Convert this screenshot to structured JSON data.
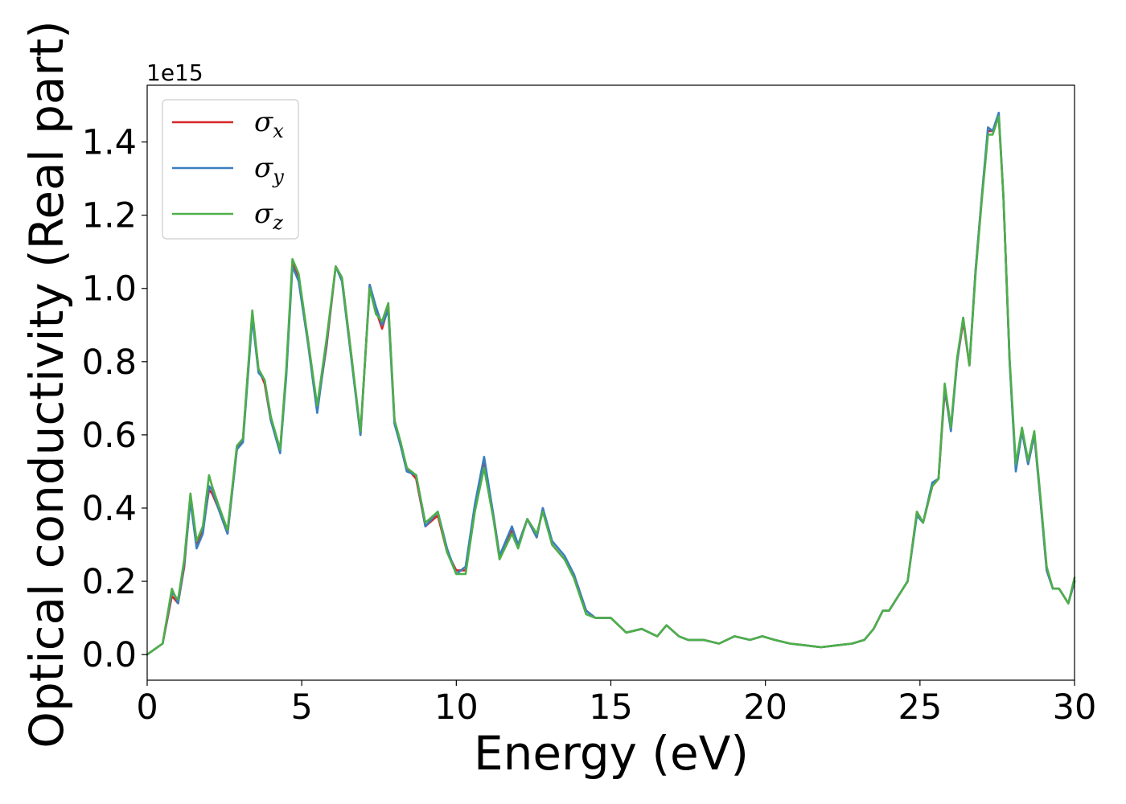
{
  "chart_data": {
    "type": "line",
    "title": "",
    "xlabel": "Energy (eV)",
    "ylabel": "Optical conductivity (Real part)",
    "y_offset_label": "1e15",
    "xlim": [
      0,
      30
    ],
    "ylim": [
      -0.07,
      1.555
    ],
    "x_ticks": [
      0,
      5,
      10,
      15,
      20,
      25,
      30
    ],
    "x_tick_labels": [
      "0",
      "5",
      "10",
      "15",
      "20",
      "25",
      "30"
    ],
    "y_ticks": [
      0.0,
      0.2,
      0.4,
      0.6,
      0.8,
      1.0,
      1.2,
      1.4
    ],
    "y_tick_labels": [
      "0.0",
      "0.2",
      "0.4",
      "0.6",
      "0.8",
      "1.0",
      "1.2",
      "1.4"
    ],
    "grid": false,
    "legend_position": "top-left",
    "legend": [
      {
        "symbol": "σ",
        "sub": "x",
        "color": "#d62728"
      },
      {
        "symbol": "σ",
        "sub": "y",
        "color": "#3a7fbf"
      },
      {
        "symbol": "σ",
        "sub": "z",
        "color": "#4daf4a"
      }
    ],
    "x": [
      0.0,
      0.5,
      0.8,
      0.9,
      1.0,
      1.2,
      1.4,
      1.6,
      1.8,
      2.0,
      2.1,
      2.3,
      2.6,
      2.9,
      3.1,
      3.4,
      3.6,
      3.8,
      4.0,
      4.3,
      4.5,
      4.7,
      4.9,
      5.2,
      5.5,
      5.8,
      6.1,
      6.3,
      6.6,
      6.9,
      7.2,
      7.4,
      7.6,
      7.8,
      8.0,
      8.2,
      8.4,
      8.7,
      9.0,
      9.4,
      9.7,
      10.0,
      10.3,
      10.6,
      10.9,
      11.2,
      11.4,
      11.8,
      12.0,
      12.3,
      12.6,
      12.8,
      13.1,
      13.5,
      13.8,
      14.2,
      14.5,
      15.0,
      15.5,
      16.0,
      16.5,
      16.8,
      17.2,
      17.5,
      18.0,
      18.5,
      19.0,
      19.5,
      19.9,
      20.3,
      20.8,
      21.3,
      21.8,
      22.3,
      22.8,
      23.2,
      23.5,
      23.8,
      24.0,
      24.3,
      24.6,
      24.9,
      25.1,
      25.4,
      25.6,
      25.8,
      26.0,
      26.2,
      26.4,
      26.6,
      26.8,
      27.0,
      27.2,
      27.35,
      27.55,
      27.7,
      27.9,
      28.1,
      28.3,
      28.5,
      28.7,
      28.9,
      29.1,
      29.3,
      29.5,
      29.8,
      30.0
    ],
    "series": [
      {
        "name": "σx",
        "values": [
          0.0,
          0.03,
          0.16,
          0.15,
          0.14,
          0.24,
          0.43,
          0.3,
          0.34,
          0.45,
          0.44,
          0.4,
          0.33,
          0.56,
          0.59,
          0.93,
          0.78,
          0.74,
          0.64,
          0.56,
          0.77,
          1.07,
          1.03,
          0.86,
          0.67,
          0.84,
          1.06,
          1.03,
          0.82,
          0.6,
          1.01,
          0.94,
          0.89,
          0.95,
          0.64,
          0.57,
          0.51,
          0.48,
          0.35,
          0.38,
          0.28,
          0.23,
          0.23,
          0.4,
          0.53,
          0.38,
          0.27,
          0.34,
          0.3,
          0.37,
          0.32,
          0.4,
          0.3,
          0.26,
          0.22,
          0.12,
          0.1,
          0.1,
          0.06,
          0.07,
          0.05,
          0.08,
          0.05,
          0.04,
          0.04,
          0.03,
          0.05,
          0.04,
          0.05,
          0.04,
          0.03,
          0.025,
          0.02,
          0.025,
          0.03,
          0.04,
          0.07,
          0.12,
          0.12,
          0.16,
          0.2,
          0.39,
          0.36,
          0.46,
          0.48,
          0.72,
          0.62,
          0.8,
          0.91,
          0.79,
          1.05,
          1.25,
          1.43,
          1.43,
          1.47,
          1.25,
          0.8,
          0.51,
          0.61,
          0.52,
          0.6,
          0.42,
          0.23,
          0.18,
          0.18,
          0.14,
          0.2
        ]
      },
      {
        "name": "σy",
        "values": [
          0.0,
          0.03,
          0.17,
          0.16,
          0.14,
          0.25,
          0.42,
          0.29,
          0.33,
          0.46,
          0.45,
          0.4,
          0.33,
          0.56,
          0.58,
          0.92,
          0.77,
          0.75,
          0.64,
          0.55,
          0.76,
          1.06,
          1.02,
          0.85,
          0.66,
          0.85,
          1.06,
          1.02,
          0.81,
          0.6,
          1.01,
          0.95,
          0.9,
          0.94,
          0.63,
          0.57,
          0.5,
          0.49,
          0.35,
          0.39,
          0.29,
          0.22,
          0.24,
          0.41,
          0.54,
          0.38,
          0.27,
          0.35,
          0.3,
          0.37,
          0.32,
          0.4,
          0.31,
          0.27,
          0.22,
          0.12,
          0.1,
          0.1,
          0.06,
          0.07,
          0.05,
          0.08,
          0.05,
          0.04,
          0.04,
          0.03,
          0.05,
          0.04,
          0.05,
          0.04,
          0.03,
          0.025,
          0.02,
          0.025,
          0.03,
          0.04,
          0.07,
          0.12,
          0.12,
          0.16,
          0.2,
          0.38,
          0.36,
          0.47,
          0.48,
          0.73,
          0.61,
          0.8,
          0.92,
          0.79,
          1.05,
          1.25,
          1.44,
          1.43,
          1.48,
          1.25,
          0.8,
          0.5,
          0.61,
          0.52,
          0.6,
          0.42,
          0.23,
          0.18,
          0.18,
          0.14,
          0.2
        ]
      },
      {
        "name": "σz",
        "values": [
          0.0,
          0.03,
          0.18,
          0.16,
          0.15,
          0.26,
          0.44,
          0.31,
          0.35,
          0.49,
          0.46,
          0.41,
          0.34,
          0.57,
          0.59,
          0.94,
          0.78,
          0.75,
          0.65,
          0.56,
          0.78,
          1.08,
          1.04,
          0.86,
          0.68,
          0.86,
          1.06,
          1.03,
          0.82,
          0.61,
          1.0,
          0.93,
          0.91,
          0.96,
          0.64,
          0.58,
          0.51,
          0.49,
          0.36,
          0.39,
          0.28,
          0.22,
          0.22,
          0.39,
          0.51,
          0.37,
          0.26,
          0.33,
          0.29,
          0.37,
          0.33,
          0.39,
          0.3,
          0.26,
          0.21,
          0.11,
          0.1,
          0.1,
          0.06,
          0.07,
          0.05,
          0.08,
          0.05,
          0.04,
          0.04,
          0.03,
          0.05,
          0.04,
          0.05,
          0.04,
          0.03,
          0.025,
          0.02,
          0.025,
          0.03,
          0.04,
          0.07,
          0.12,
          0.12,
          0.16,
          0.2,
          0.39,
          0.36,
          0.46,
          0.48,
          0.74,
          0.62,
          0.81,
          0.92,
          0.79,
          1.04,
          1.24,
          1.42,
          1.42,
          1.47,
          1.25,
          0.81,
          0.52,
          0.62,
          0.53,
          0.61,
          0.43,
          0.24,
          0.18,
          0.18,
          0.14,
          0.21
        ]
      }
    ]
  }
}
